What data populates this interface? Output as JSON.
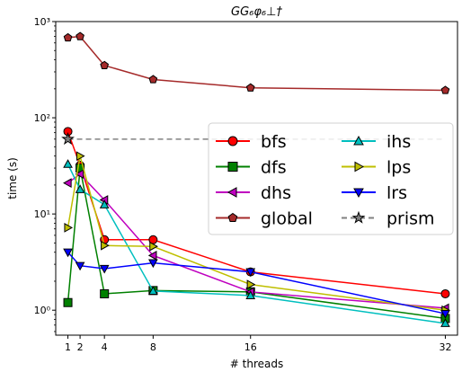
{
  "chart_data": {
    "type": "line",
    "title": "GG₆φ₆⊥†",
    "xlabel": "# threads",
    "ylabel": "time (s)",
    "yscale": "log",
    "xlim": [
      0,
      33
    ],
    "ylim": [
      0.55,
      1000
    ],
    "x_ticks": [
      1,
      2,
      4,
      8,
      16,
      32
    ],
    "y_ticks": [
      {
        "value": 1,
        "label": "10⁰"
      },
      {
        "value": 10,
        "label": "10¹"
      },
      {
        "value": 100,
        "label": "10²"
      },
      {
        "value": 1000,
        "label": "10³"
      }
    ],
    "grid": false,
    "legend": {
      "placement": "center-right",
      "columns": 2
    },
    "series": [
      {
        "name": "bfs",
        "color": "#ff0000",
        "marker": "circle",
        "x": [
          1,
          2,
          4,
          8,
          16,
          32
        ],
        "y": [
          72,
          32,
          5.4,
          5.4,
          2.5,
          1.48
        ]
      },
      {
        "name": "dfs",
        "color": "#008000",
        "marker": "square",
        "x": [
          1,
          2,
          4,
          8,
          16,
          32
        ],
        "y": [
          1.2,
          30,
          1.48,
          1.6,
          1.55,
          0.82
        ]
      },
      {
        "name": "dhs",
        "color": "#bf00bf",
        "marker": "triangle-left",
        "x": [
          1,
          2,
          4,
          8,
          16,
          32
        ],
        "y": [
          21,
          26,
          14,
          3.7,
          1.55,
          1.05
        ]
      },
      {
        "name": "global",
        "color": "#a52a2a",
        "marker": "pentagon",
        "x": [
          1,
          2,
          4,
          8,
          16,
          32
        ],
        "y": [
          680,
          700,
          350,
          250,
          205,
          193
        ]
      },
      {
        "name": "ihs",
        "color": "#00bfbf",
        "marker": "triangle-up",
        "x": [
          1,
          2,
          4,
          8,
          16,
          32
        ],
        "y": [
          33,
          18,
          12.5,
          1.58,
          1.42,
          0.73
        ]
      },
      {
        "name": "lps",
        "color": "#bfbf00",
        "marker": "triangle-right",
        "x": [
          1,
          2,
          4,
          8,
          16,
          32
        ],
        "y": [
          7.2,
          40,
          4.7,
          4.6,
          1.85,
          1.0
        ]
      },
      {
        "name": "lrs",
        "color": "#0000ff",
        "marker": "triangle-down",
        "x": [
          1,
          2,
          4,
          8,
          16,
          32
        ],
        "y": [
          4.0,
          2.9,
          2.7,
          3.1,
          2.5,
          0.92
        ]
      },
      {
        "name": "prism",
        "color": "#808080",
        "marker": "star",
        "dashed": true,
        "x": [
          1,
          32
        ],
        "y": [
          60,
          60
        ]
      }
    ]
  }
}
